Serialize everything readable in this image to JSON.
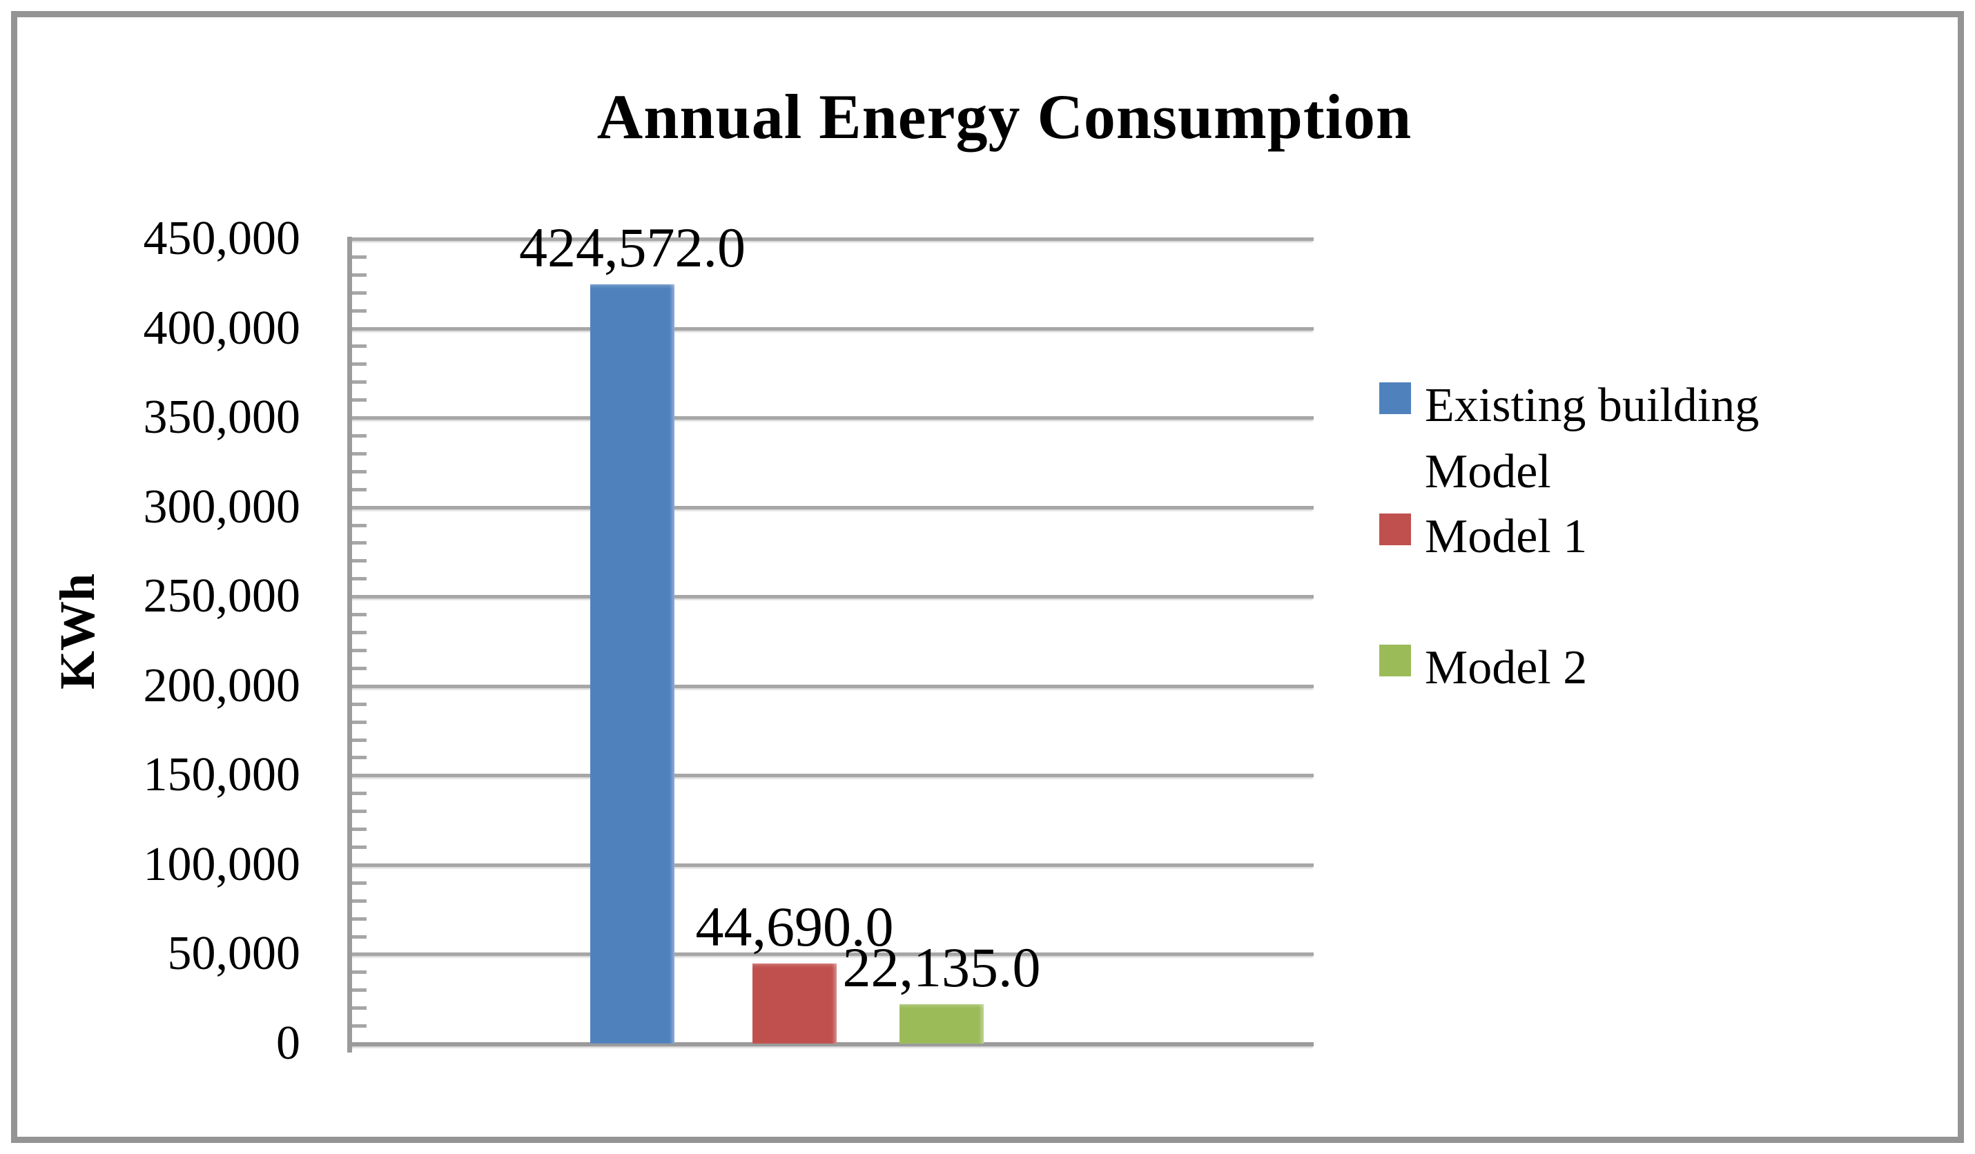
{
  "chart_data": {
    "type": "bar",
    "title": "Annual Energy Consumption",
    "ylabel": "KWh",
    "xlabel": "",
    "categories": [
      ""
    ],
    "series": [
      {
        "name": "Existing building Model",
        "values": [
          424572.0
        ],
        "color": "#4f81bd",
        "data_label": "424,572.0"
      },
      {
        "name": "Model 1",
        "values": [
          44690.0
        ],
        "color": "#c0504d",
        "data_label": "44,690.0"
      },
      {
        "name": "Model 2",
        "values": [
          22135.0
        ],
        "color": "#9bbb59",
        "data_label": "22,135.0"
      }
    ],
    "ylim": [
      0,
      450000
    ],
    "ytick_interval": 50000,
    "minor_tick_interval": 10000,
    "yticks": [
      "450,000",
      "400,000",
      "350,000",
      "300,000",
      "250,000",
      "200,000",
      "150,000",
      "100,000",
      "50,000",
      "0"
    ],
    "grid": true,
    "legend_position": "right"
  },
  "colors": {
    "grid": "#a6a6a6",
    "axis": "#9b9b9b",
    "chart_border": "#949494",
    "background": "#ffffff",
    "text": "#000000"
  }
}
